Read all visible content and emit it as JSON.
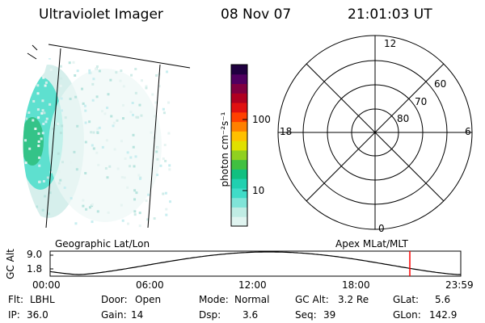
{
  "header": {
    "instrument": "Ultraviolet Imager",
    "date": "08 Nov 07",
    "time": "21:01:03 UT"
  },
  "colorbar": {
    "unit_label": "photon cm⁻²s⁻¹",
    "ticks": [
      "100",
      "10"
    ],
    "colors": [
      "#e0f4f0",
      "#c0ece4",
      "#80e4d8",
      "#40dcc8",
      "#20d0b0",
      "#10c080",
      "#40c040",
      "#90d020",
      "#e0e000",
      "#ffc000",
      "#ff8000",
      "#ff4000",
      "#e01010",
      "#b00020",
      "#800040",
      "#500060",
      "#200040"
    ]
  },
  "polar_grid": {
    "mlt_labels": {
      "top": "12",
      "left": "18",
      "right": "6",
      "bottom": "0"
    },
    "lat_labels": [
      "60",
      "70",
      "80"
    ]
  },
  "altitude_panel": {
    "left_label": "Geographic Lat/Lon",
    "right_label": "Apex MLat/MLT",
    "axis_title": "GC Alt",
    "y_ticks": [
      "9.0",
      "1.8"
    ],
    "x_ticks": [
      "00:00",
      "06:00",
      "12:00",
      "18:00",
      "23:59"
    ],
    "marker_color": "#ff0000"
  },
  "info": {
    "row1": [
      {
        "label": "Flt:",
        "value": "LBHL"
      },
      {
        "label": "Door:",
        "value": "Open"
      },
      {
        "label": "Mode:",
        "value": "Normal"
      },
      {
        "label": "GC Alt:",
        "value": "3.2 Re"
      },
      {
        "label": "GLat:",
        "value": "5.6"
      }
    ],
    "row2": [
      {
        "label": "IP:",
        "value": "36.0"
      },
      {
        "label": "Gain:",
        "value": "14"
      },
      {
        "label": "Dsp:",
        "value": "3.6"
      },
      {
        "label": "Seq:",
        "value": "39"
      },
      {
        "label": "GLon:",
        "value": "142.9"
      }
    ]
  }
}
